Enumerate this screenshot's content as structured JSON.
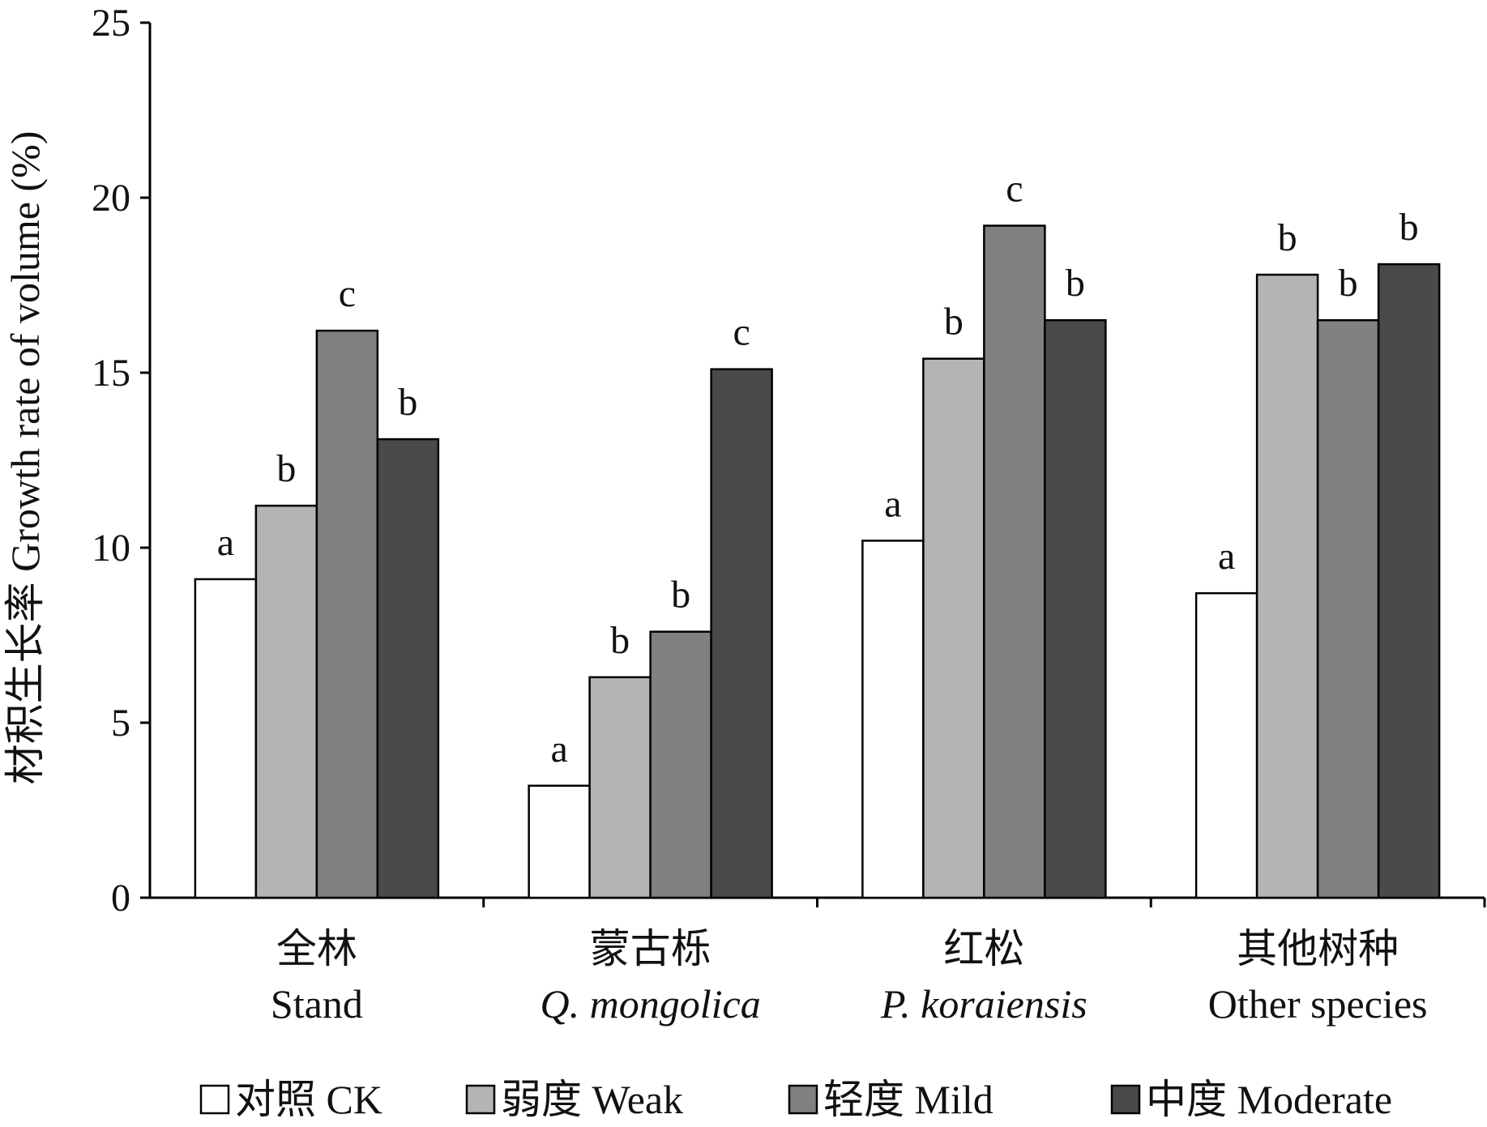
{
  "chart_data": {
    "type": "bar",
    "title": "",
    "ylabel": "材积生长率  Growth rate of volume (%)",
    "xlabel": "",
    "ylim": [
      0,
      25
    ],
    "yticks": [
      0,
      5,
      10,
      15,
      20,
      25
    ],
    "grid": false,
    "legend_position": "bottom",
    "categories": [
      {
        "zh": "全林",
        "en": "Stand",
        "italic": false
      },
      {
        "zh": "蒙古栎",
        "en": "Q. mongolica",
        "italic": true
      },
      {
        "zh": "红松",
        "en": "P. koraiensis",
        "italic": true
      },
      {
        "zh": "其他树种",
        "en": "Other species",
        "italic": false
      }
    ],
    "series": [
      {
        "name": "对照  CK",
        "color": "#ffffff",
        "values": [
          9.1,
          3.2,
          10.2,
          8.7
        ],
        "letters": [
          "a",
          "a",
          "a",
          "a"
        ]
      },
      {
        "name": "弱度  Weak",
        "color": "#b4b4b4",
        "values": [
          11.2,
          6.3,
          15.4,
          17.8
        ],
        "letters": [
          "b",
          "b",
          "b",
          "b"
        ]
      },
      {
        "name": "轻度  Mild",
        "color": "#808080",
        "values": [
          16.2,
          7.6,
          19.2,
          16.5
        ],
        "letters": [
          "c",
          "b",
          "c",
          "b"
        ]
      },
      {
        "name": "中度  Moderate",
        "color": "#4a4a4a",
        "values": [
          13.1,
          15.1,
          16.5,
          18.1
        ],
        "letters": [
          "b",
          "c",
          "b",
          "b"
        ]
      }
    ]
  }
}
